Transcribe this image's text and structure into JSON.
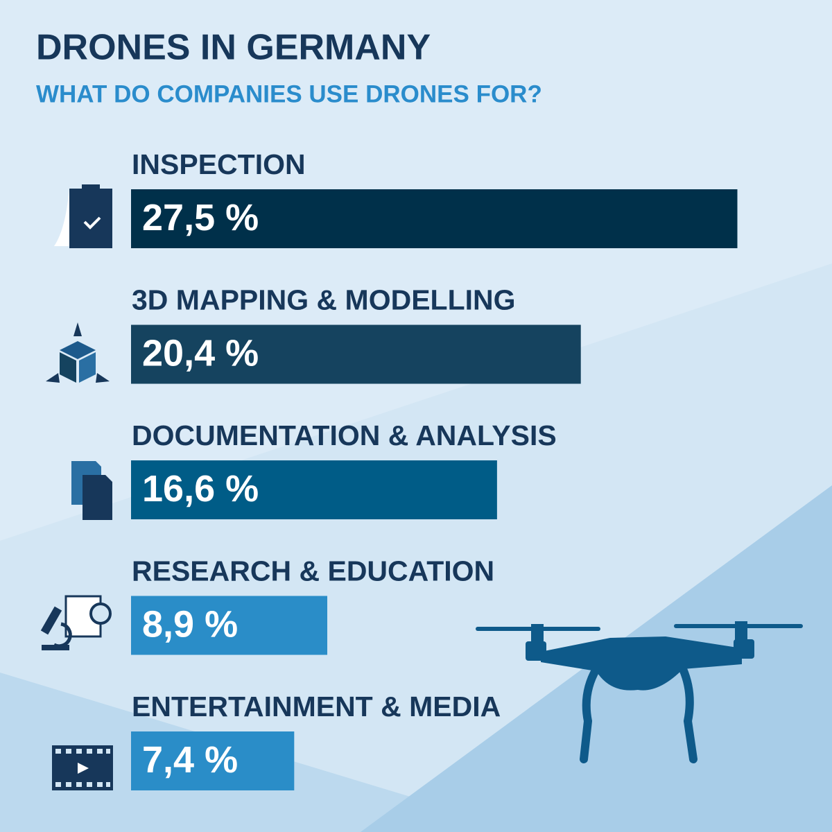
{
  "chart_data": {
    "type": "bar",
    "title": "DRONES IN GERMANY",
    "subtitle": "WHAT DO COMPANIES USE DRONES FOR?",
    "categories": [
      "INSPECTION",
      "3D MAPPING & MODELLING",
      "DOCUMENTATION & ANALYSIS",
      "RESEARCH & EDUCATION",
      "ENTERTAINMENT & MEDIA"
    ],
    "values": [
      27.5,
      20.4,
      16.6,
      8.9,
      7.4
    ],
    "value_labels": [
      "27,5 %",
      "20,4 %",
      "16,6 %",
      "8,9 %",
      "7,4 %"
    ],
    "colors": [
      "#00304a",
      "#15435f",
      "#005c87",
      "#2a8dc8",
      "#2a8dc8"
    ]
  }
}
